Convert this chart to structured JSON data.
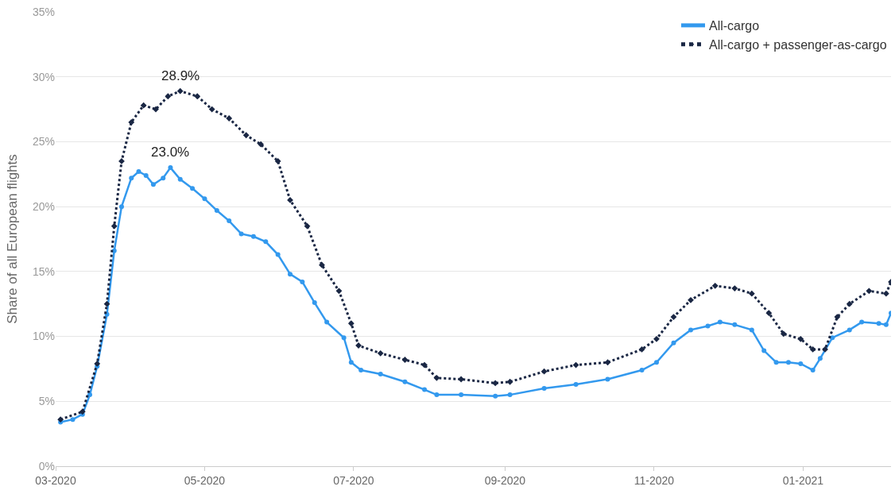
{
  "chart_data": {
    "type": "line",
    "ylabel": "Share of all European flights",
    "xlim": [
      "2020-03-01",
      "2021-02-06"
    ],
    "xticks": [
      {
        "value": "2020-03-01",
        "label": "03-2020"
      },
      {
        "value": "2020-05-01",
        "label": "05-2020"
      },
      {
        "value": "2020-07-01",
        "label": "07-2020"
      },
      {
        "value": "2020-09-01",
        "label": "09-2020"
      },
      {
        "value": "2020-11-01",
        "label": "11-2020"
      },
      {
        "value": "2021-01-01",
        "label": "01-2021"
      }
    ],
    "ylim": [
      0,
      35
    ],
    "yticks": [
      {
        "value": 0,
        "label": "0%"
      },
      {
        "value": 5,
        "label": "5%"
      },
      {
        "value": 10,
        "label": "10%"
      },
      {
        "value": 15,
        "label": "15%"
      },
      {
        "value": 20,
        "label": "20%"
      },
      {
        "value": 25,
        "label": "25%"
      },
      {
        "value": 30,
        "label": "30%"
      },
      {
        "value": 35,
        "label": "35%"
      }
    ],
    "grid": "y",
    "legend": "top right",
    "series": [
      {
        "name": "All-cargo",
        "color": "#3399ee",
        "marker": "circle",
        "line_style": "solid",
        "x": [
          "2020-03-03",
          "2020-03-08",
          "2020-03-12",
          "2020-03-15",
          "2020-03-18",
          "2020-03-22",
          "2020-03-25",
          "2020-03-28",
          "2020-04-01",
          "2020-04-04",
          "2020-04-07",
          "2020-04-10",
          "2020-04-14",
          "2020-04-17",
          "2020-04-21",
          "2020-04-26",
          "2020-05-01",
          "2020-05-06",
          "2020-05-11",
          "2020-05-16",
          "2020-05-21",
          "2020-05-26",
          "2020-05-31",
          "2020-06-05",
          "2020-06-10",
          "2020-06-15",
          "2020-06-20",
          "2020-06-27",
          "2020-06-30",
          "2020-07-04",
          "2020-07-12",
          "2020-07-22",
          "2020-07-30",
          "2020-08-04",
          "2020-08-14",
          "2020-08-28",
          "2020-09-03",
          "2020-09-17",
          "2020-09-30",
          "2020-10-13",
          "2020-10-27",
          "2020-11-02",
          "2020-11-09",
          "2020-11-16",
          "2020-11-23",
          "2020-11-28",
          "2020-12-04",
          "2020-12-11",
          "2020-12-16",
          "2020-12-21",
          "2020-12-26",
          "2020-12-31",
          "2021-01-05",
          "2021-01-08",
          "2021-01-13",
          "2021-01-20",
          "2021-01-25",
          "2021-02-01",
          "2021-02-04",
          "2021-02-06"
        ],
        "values": [
          3.4,
          3.6,
          4.0,
          5.5,
          7.7,
          11.7,
          16.6,
          20.0,
          22.2,
          22.7,
          22.4,
          21.7,
          22.2,
          23.0,
          22.1,
          21.4,
          20.6,
          19.7,
          18.9,
          17.9,
          17.7,
          17.3,
          16.3,
          14.8,
          14.2,
          12.6,
          11.1,
          9.9,
          8.0,
          7.4,
          7.1,
          6.5,
          5.9,
          5.5,
          5.5,
          5.4,
          5.5,
          6.0,
          6.3,
          6.7,
          7.4,
          8.0,
          9.5,
          10.5,
          10.8,
          11.1,
          10.9,
          10.5,
          8.9,
          8.0,
          8.0,
          7.9,
          7.4,
          8.3,
          9.9,
          10.5,
          11.1,
          11.0,
          10.9,
          11.8
        ]
      },
      {
        "name": "All-cargo + passenger-as-cargo",
        "color": "#1a2744",
        "marker": "diamond",
        "line_style": "dotted",
        "x": [
          "2020-03-03",
          "2020-03-12",
          "2020-03-18",
          "2020-03-22",
          "2020-03-25",
          "2020-03-28",
          "2020-04-01",
          "2020-04-06",
          "2020-04-11",
          "2020-04-16",
          "2020-04-21",
          "2020-04-28",
          "2020-05-04",
          "2020-05-11",
          "2020-05-18",
          "2020-05-24",
          "2020-05-31",
          "2020-06-05",
          "2020-06-12",
          "2020-06-18",
          "2020-06-25",
          "2020-06-30",
          "2020-07-03",
          "2020-07-12",
          "2020-07-22",
          "2020-07-30",
          "2020-08-04",
          "2020-08-14",
          "2020-08-28",
          "2020-09-03",
          "2020-09-17",
          "2020-09-30",
          "2020-10-13",
          "2020-10-27",
          "2020-11-02",
          "2020-11-09",
          "2020-11-16",
          "2020-11-26",
          "2020-12-04",
          "2020-12-11",
          "2020-12-18",
          "2020-12-24",
          "2020-12-31",
          "2021-01-05",
          "2021-01-10",
          "2021-01-15",
          "2021-01-20",
          "2021-01-28",
          "2021-02-04",
          "2021-02-06"
        ],
        "values": [
          3.6,
          4.2,
          7.9,
          12.5,
          18.5,
          23.5,
          26.5,
          27.8,
          27.5,
          28.5,
          28.9,
          28.5,
          27.5,
          26.8,
          25.5,
          24.8,
          23.5,
          20.5,
          18.5,
          15.5,
          13.5,
          11.0,
          9.3,
          8.7,
          8.2,
          7.8,
          6.8,
          6.7,
          6.4,
          6.5,
          7.3,
          7.8,
          8.0,
          9.0,
          9.8,
          11.5,
          12.8,
          13.9,
          13.7,
          13.3,
          11.8,
          10.2,
          9.8,
          9.0,
          9.0,
          11.5,
          12.5,
          13.5,
          13.3,
          14.2
        ]
      }
    ],
    "annotations": [
      {
        "text": "28.9%",
        "x": "2020-04-21",
        "y": 28.9
      },
      {
        "text": "23.0%",
        "x": "2020-04-17",
        "y": 23.0
      }
    ]
  }
}
